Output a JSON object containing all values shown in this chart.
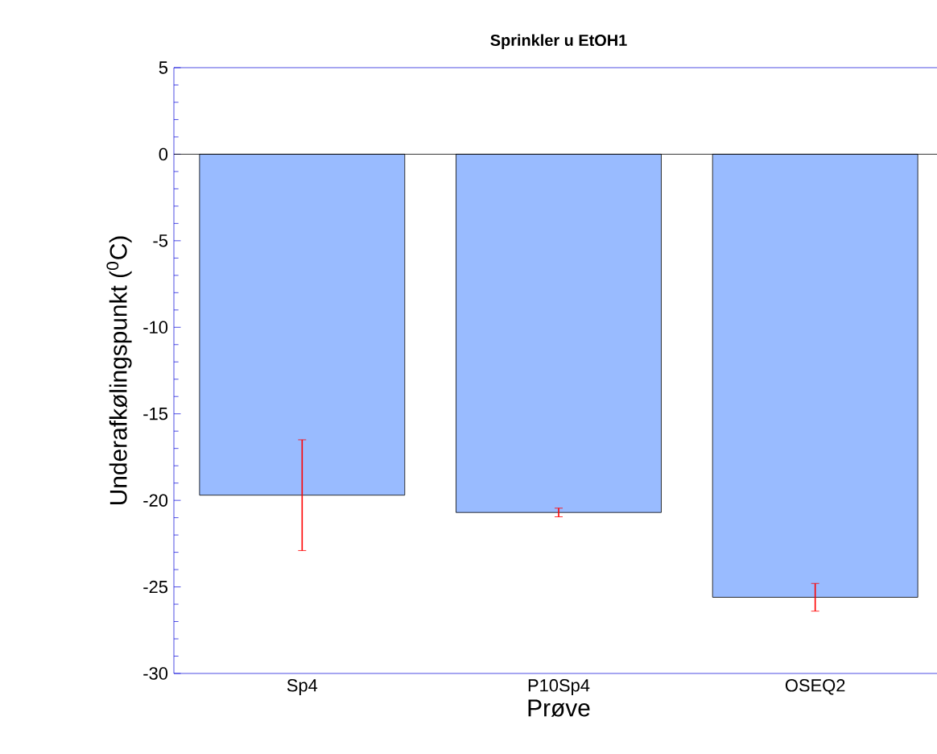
{
  "chart_data": {
    "type": "bar",
    "title": "Sprinkler u EtOH1",
    "xlabel": "Prøve",
    "ylabel": "Underafkølingspunkt ($^{0}$C)",
    "categories": [
      "Sp4",
      "P10Sp4",
      "OSEQ2"
    ],
    "values": [
      -19.7,
      -20.7,
      -25.6
    ],
    "errors": [
      3.2,
      0.25,
      0.8
    ],
    "color": "#99bbff",
    "ylim": [
      -30,
      5
    ],
    "yticks": [
      -30,
      -25,
      -20,
      -15,
      -10,
      -5,
      0,
      5
    ]
  }
}
